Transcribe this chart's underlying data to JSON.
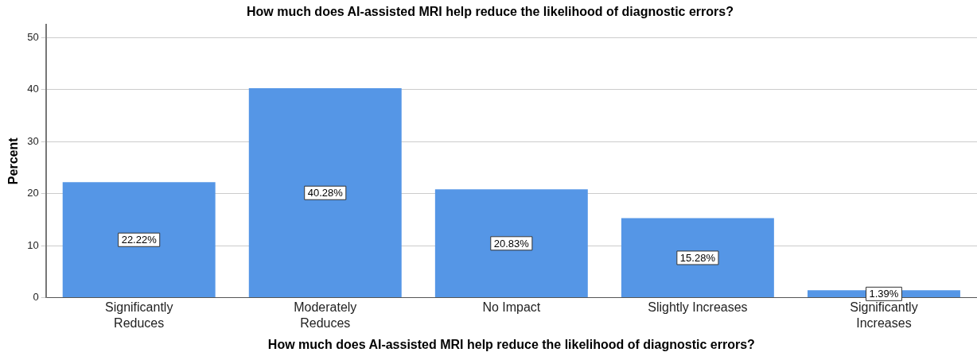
{
  "chart_data": {
    "type": "bar",
    "title": "How much does AI-assisted MRI help reduce the likelihood of diagnostic errors?",
    "xlabel": "How much does AI-assisted MRI help reduce the likelihood of diagnostic errors?",
    "ylabel": "Percent",
    "categories": [
      "Significantly Reduces",
      "Moderately Reduces",
      "No Impact",
      "Slightly Increases",
      "Significantly Increases"
    ],
    "values": [
      22.22,
      40.28,
      20.83,
      15.28,
      1.39
    ],
    "value_labels": [
      "22.22%",
      "40.28%",
      "20.83%",
      "15.28%",
      "1.39%"
    ],
    "color": "#5596e6",
    "ylim": [
      0,
      52.5
    ],
    "yticks": [
      0,
      10,
      20,
      30,
      40,
      50
    ],
    "grid": "y"
  }
}
